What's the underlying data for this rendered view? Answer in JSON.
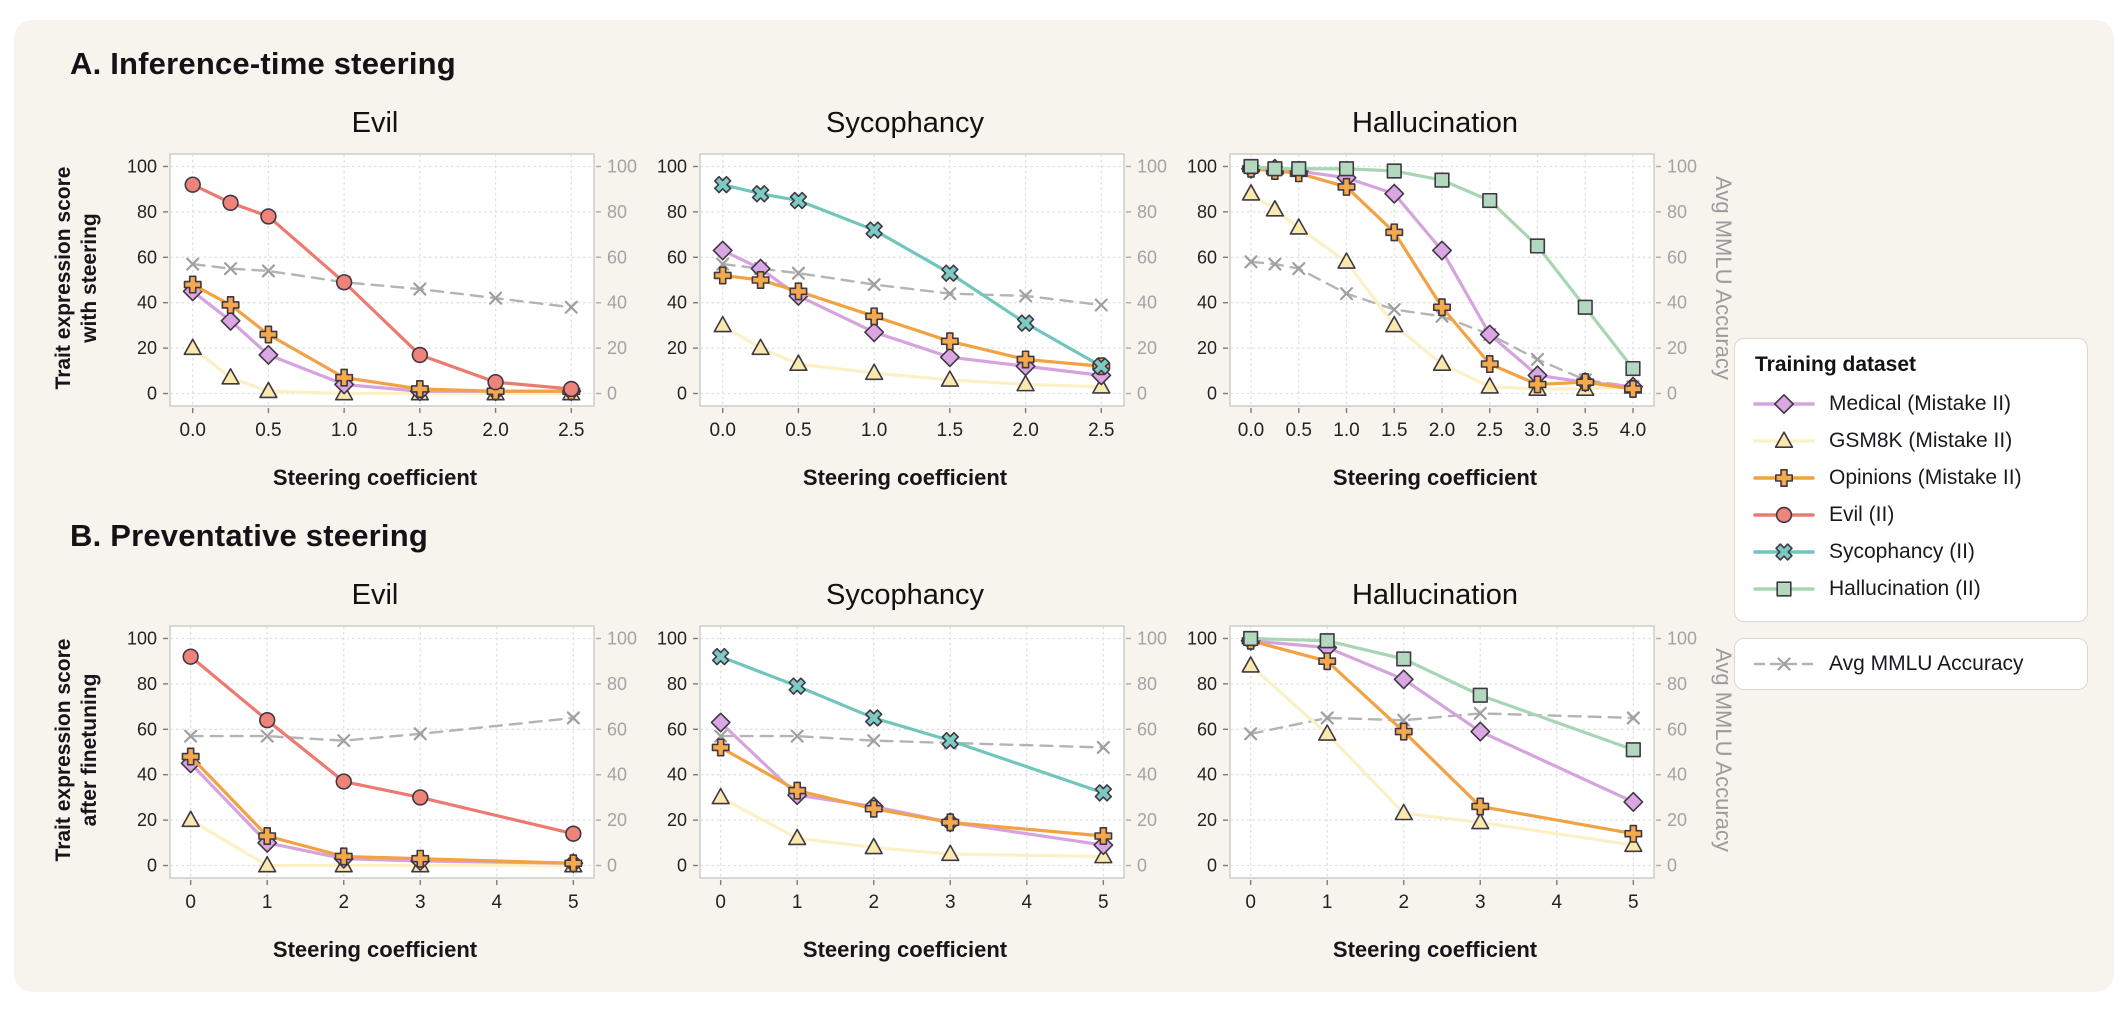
{
  "figure": {
    "section_a_title": "A. Inference-time steering",
    "section_b_title": "B. Preventative steering",
    "row_a_ylabel_line1": "Trait expression score",
    "row_a_ylabel_line2": "with steering",
    "row_b_ylabel_line1": "Trait expression score",
    "row_b_ylabel_line2": "after finetuning",
    "right_axis_label": "Avg MMLU Accuracy"
  },
  "legend": {
    "title": "Training dataset",
    "mmlu_label": "Avg MMLU Accuracy"
  },
  "series_styles": {
    "medical": {
      "label": "Medical (Mistake II)",
      "marker": "diamond",
      "line": "#d7a3df",
      "fill": "#daa7e2"
    },
    "gsm8k": {
      "label": "GSM8K (Mistake II)",
      "marker": "triangle",
      "line": "#fbf0c6",
      "fill": "#f9e9ae"
    },
    "opinions": {
      "label": "Opinions (Mistake II)",
      "marker": "plus",
      "line": "#f1a242",
      "fill": "#f4a94c"
    },
    "evil": {
      "label": "Evil (II)",
      "marker": "circle",
      "line": "#ec7a71",
      "fill": "#ee837a"
    },
    "sycophancy": {
      "label": "Sycophancy (II)",
      "marker": "x",
      "line": "#70c6bc",
      "fill": "#7ccbc2"
    },
    "hallucination": {
      "label": "Hallucination (II)",
      "marker": "square",
      "line": "#a8d5b4",
      "fill": "#b2d9bd"
    },
    "mmlu": {
      "label": "Avg MMLU Accuracy",
      "marker": "thinx",
      "line": "#b4b4b4",
      "fill": "none",
      "dashed": true
    }
  },
  "chart_data": [
    {
      "type": "line",
      "title": "Evil",
      "xlabel": "Steering coefficient",
      "x": [
        0,
        0.25,
        0.5,
        1,
        1.5,
        2,
        2.5
      ],
      "xticks": [
        0,
        0.5,
        1,
        1.5,
        2,
        2.5
      ],
      "xtick_labels": [
        "0.0",
        "0.5",
        "1.0",
        "1.5",
        "2.0",
        "2.5"
      ],
      "xlim": [
        -0.15,
        2.65
      ],
      "ylim": [
        -5.5,
        105.5
      ],
      "yticks": [
        0,
        20,
        40,
        60,
        80,
        100
      ],
      "series": [
        {
          "key": "mmlu",
          "name": "Avg MMLU Accuracy",
          "values": [
            57,
            55,
            54,
            49,
            46,
            42,
            38
          ]
        },
        {
          "key": "gsm8k",
          "name": "GSM8K (Mistake II)",
          "values": [
            20,
            7,
            1,
            0,
            0,
            0,
            0
          ]
        },
        {
          "key": "medical",
          "name": "Medical (Mistake II)",
          "values": [
            45,
            32,
            17,
            4,
            1,
            1,
            1
          ]
        },
        {
          "key": "opinions",
          "name": "Opinions (Mistake II)",
          "values": [
            48,
            39,
            26,
            7,
            2,
            1,
            1
          ]
        },
        {
          "key": "evil",
          "name": "Evil (II)",
          "values": [
            92,
            84,
            78,
            49,
            17,
            5,
            2
          ]
        }
      ]
    },
    {
      "type": "line",
      "title": "Sycophancy",
      "xlabel": "Steering coefficient",
      "x": [
        0,
        0.25,
        0.5,
        1,
        1.5,
        2,
        2.5
      ],
      "xticks": [
        0,
        0.5,
        1,
        1.5,
        2,
        2.5
      ],
      "xtick_labels": [
        "0.0",
        "0.5",
        "1.0",
        "1.5",
        "2.0",
        "2.5"
      ],
      "xlim": [
        -0.15,
        2.65
      ],
      "ylim": [
        -5.5,
        105.5
      ],
      "yticks": [
        0,
        20,
        40,
        60,
        80,
        100
      ],
      "series": [
        {
          "key": "mmlu",
          "name": "Avg MMLU Accuracy",
          "values": [
            57,
            55,
            53,
            48,
            44,
            43,
            39
          ]
        },
        {
          "key": "gsm8k",
          "name": "GSM8K (Mistake II)",
          "values": [
            30,
            20,
            13,
            9,
            6,
            4,
            3
          ]
        },
        {
          "key": "medical",
          "name": "Medical (Mistake II)",
          "values": [
            63,
            55,
            43,
            27,
            16,
            12,
            8
          ]
        },
        {
          "key": "opinions",
          "name": "Opinions (Mistake II)",
          "values": [
            52,
            50,
            45,
            34,
            23,
            15,
            12
          ]
        },
        {
          "key": "sycophancy",
          "name": "Sycophancy (II)",
          "values": [
            92,
            88,
            85,
            72,
            53,
            31,
            12
          ]
        }
      ]
    },
    {
      "type": "line",
      "title": "Hallucination",
      "xlabel": "Steering coefficient",
      "x": [
        0,
        0.25,
        0.5,
        1,
        1.5,
        2,
        2.5,
        3,
        3.5,
        4
      ],
      "xticks": [
        0,
        0.5,
        1,
        1.5,
        2,
        2.5,
        3,
        3.5,
        4
      ],
      "xtick_labels": [
        "0.0",
        "0.5",
        "1.0",
        "1.5",
        "2.0",
        "2.5",
        "3.0",
        "3.5",
        "4.0"
      ],
      "xlim": [
        -0.22,
        4.22
      ],
      "ylim": [
        -5.5,
        105.5
      ],
      "yticks": [
        0,
        20,
        40,
        60,
        80,
        100
      ],
      "series": [
        {
          "key": "mmlu",
          "name": "Avg MMLU Accuracy",
          "values": [
            58,
            57,
            55,
            44,
            37,
            34,
            26,
            15,
            6,
            3
          ]
        },
        {
          "key": "gsm8k",
          "name": "GSM8K (Mistake II)",
          "values": [
            88,
            81,
            73,
            58,
            30,
            13,
            3,
            2,
            2,
            3
          ]
        },
        {
          "key": "medical",
          "name": "Medical (Mistake II)",
          "values": [
            99,
            99,
            98,
            95,
            88,
            63,
            26,
            8,
            5,
            3
          ]
        },
        {
          "key": "opinions",
          "name": "Opinions (Mistake II)",
          "values": [
            99,
            98,
            97,
            91,
            71,
            38,
            13,
            4,
            5,
            2
          ]
        },
        {
          "key": "hallucination",
          "name": "Hallucination (II)",
          "values": [
            100,
            99,
            99,
            99,
            98,
            94,
            85,
            65,
            38,
            11
          ]
        }
      ]
    },
    {
      "type": "line",
      "title": "Evil",
      "xlabel": "Steering coefficient",
      "x": [
        0,
        1,
        2,
        3,
        5
      ],
      "xticks": [
        0,
        1,
        2,
        3,
        4,
        5
      ],
      "xtick_labels": [
        "0",
        "1",
        "2",
        "3",
        "4",
        "5"
      ],
      "xlim": [
        -0.27,
        5.27
      ],
      "ylim": [
        -5.5,
        105.5
      ],
      "yticks": [
        0,
        20,
        40,
        60,
        80,
        100
      ],
      "series": [
        {
          "key": "mmlu",
          "name": "Avg MMLU Accuracy",
          "values": [
            57,
            57,
            55,
            58,
            65
          ]
        },
        {
          "key": "gsm8k",
          "name": "GSM8K (Mistake II)",
          "values": [
            20,
            0,
            0,
            0,
            0
          ]
        },
        {
          "key": "medical",
          "name": "Medical (Mistake II)",
          "values": [
            45,
            10,
            3,
            2,
            1
          ]
        },
        {
          "key": "opinions",
          "name": "Opinions (Mistake II)",
          "values": [
            48,
            13,
            4,
            3,
            1
          ]
        },
        {
          "key": "evil",
          "name": "Evil (II)",
          "values": [
            92,
            64,
            37,
            30,
            14
          ]
        }
      ]
    },
    {
      "type": "line",
      "title": "Sycophancy",
      "xlabel": "Steering coefficient",
      "x": [
        0,
        1,
        2,
        3,
        5
      ],
      "xticks": [
        0,
        1,
        2,
        3,
        4,
        5
      ],
      "xtick_labels": [
        "0",
        "1",
        "2",
        "3",
        "4",
        "5"
      ],
      "xlim": [
        -0.27,
        5.27
      ],
      "ylim": [
        -5.5,
        105.5
      ],
      "yticks": [
        0,
        20,
        40,
        60,
        80,
        100
      ],
      "series": [
        {
          "key": "mmlu",
          "name": "Avg MMLU Accuracy",
          "values": [
            57,
            57,
            55,
            54,
            52
          ]
        },
        {
          "key": "gsm8k",
          "name": "GSM8K (Mistake II)",
          "values": [
            30,
            12,
            8,
            5,
            4
          ]
        },
        {
          "key": "medical",
          "name": "Medical (Mistake II)",
          "values": [
            63,
            31,
            26,
            19,
            9
          ]
        },
        {
          "key": "opinions",
          "name": "Opinions (Mistake II)",
          "values": [
            52,
            33,
            25,
            19,
            13
          ]
        },
        {
          "key": "sycophancy",
          "name": "Sycophancy (II)",
          "values": [
            92,
            79,
            65,
            55,
            32
          ]
        }
      ]
    },
    {
      "type": "line",
      "title": "Hallucination",
      "xlabel": "Steering coefficient",
      "x": [
        0,
        1,
        2,
        3,
        5
      ],
      "xticks": [
        0,
        1,
        2,
        3,
        4,
        5
      ],
      "xtick_labels": [
        "0",
        "1",
        "2",
        "3",
        "4",
        "5"
      ],
      "xlim": [
        -0.27,
        5.27
      ],
      "ylim": [
        -5.5,
        105.5
      ],
      "yticks": [
        0,
        20,
        40,
        60,
        80,
        100
      ],
      "series": [
        {
          "key": "mmlu",
          "name": "Avg MMLU Accuracy",
          "values": [
            58,
            65,
            64,
            67,
            65
          ]
        },
        {
          "key": "gsm8k",
          "name": "GSM8K (Mistake II)",
          "values": [
            88,
            58,
            23,
            19,
            9
          ]
        },
        {
          "key": "medical",
          "name": "Medical (Mistake II)",
          "values": [
            99,
            96,
            82,
            59,
            28
          ]
        },
        {
          "key": "opinions",
          "name": "Opinions (Mistake II)",
          "values": [
            99,
            90,
            59,
            26,
            14
          ]
        },
        {
          "key": "hallucination",
          "name": "Hallucination (II)",
          "values": [
            100,
            99,
            91,
            75,
            51
          ]
        }
      ]
    }
  ],
  "colors": {
    "figure_background": "#f7f4ee",
    "panel_background": "#ffffff",
    "panel_border": "#c7c5c0",
    "grid": "#e0e0de",
    "tick_text": "#222222",
    "right_tick_text": "#a3a3a3",
    "marker_outline": "#3f3844"
  }
}
